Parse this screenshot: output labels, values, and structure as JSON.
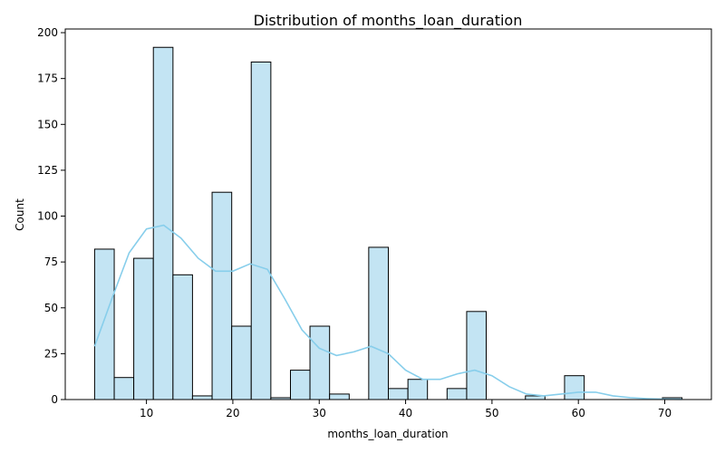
{
  "colors": {
    "bar_fill": "#c3e4f3",
    "bar_edge": "#000000",
    "kde_line": "#87ceeb"
  },
  "chart_data": {
    "type": "histogram",
    "title": "Distribution of months_loan_duration",
    "xlabel": "months_loan_duration",
    "ylabel": "Count",
    "xlim": [
      0.6,
      75.4
    ],
    "ylim": [
      0,
      202
    ],
    "xticks": [
      10,
      20,
      30,
      40,
      50,
      60,
      70
    ],
    "yticks": [
      0,
      25,
      50,
      75,
      100,
      125,
      150,
      175,
      200
    ],
    "grid": false,
    "bin_edges": [
      4,
      6.27,
      8.53,
      10.8,
      13.07,
      15.33,
      17.6,
      19.87,
      22.13,
      24.4,
      26.67,
      28.93,
      31.2,
      33.47,
      35.73,
      38,
      40.27,
      42.53,
      44.8,
      47.07,
      49.33,
      51.6,
      53.87,
      56.13,
      58.4,
      60.67,
      62.93,
      65.2,
      67.47,
      69.73,
      72
    ],
    "counts": [
      82,
      12,
      77,
      192,
      68,
      2,
      113,
      40,
      184,
      1,
      16,
      40,
      3,
      0,
      83,
      6,
      11,
      0,
      6,
      48,
      0,
      0,
      2,
      0,
      13,
      0,
      0,
      0,
      0,
      1
    ],
    "kde": {
      "x": [
        4,
        6,
        8,
        10,
        12,
        14,
        16,
        18,
        20,
        22,
        24,
        26,
        28,
        30,
        32,
        34,
        36,
        38,
        40,
        42,
        44,
        46,
        48,
        50,
        52,
        54,
        56,
        58,
        60,
        62,
        64,
        66,
        68,
        70,
        72
      ],
      "y": [
        29,
        55,
        80,
        93,
        95,
        88,
        77,
        70,
        70,
        74,
        71,
        55,
        38,
        28,
        24,
        26,
        29,
        25,
        16,
        11,
        11,
        14,
        16,
        13,
        7,
        3,
        2,
        3,
        4,
        4,
        2,
        1,
        0.5,
        0.2,
        0.1
      ]
    }
  }
}
